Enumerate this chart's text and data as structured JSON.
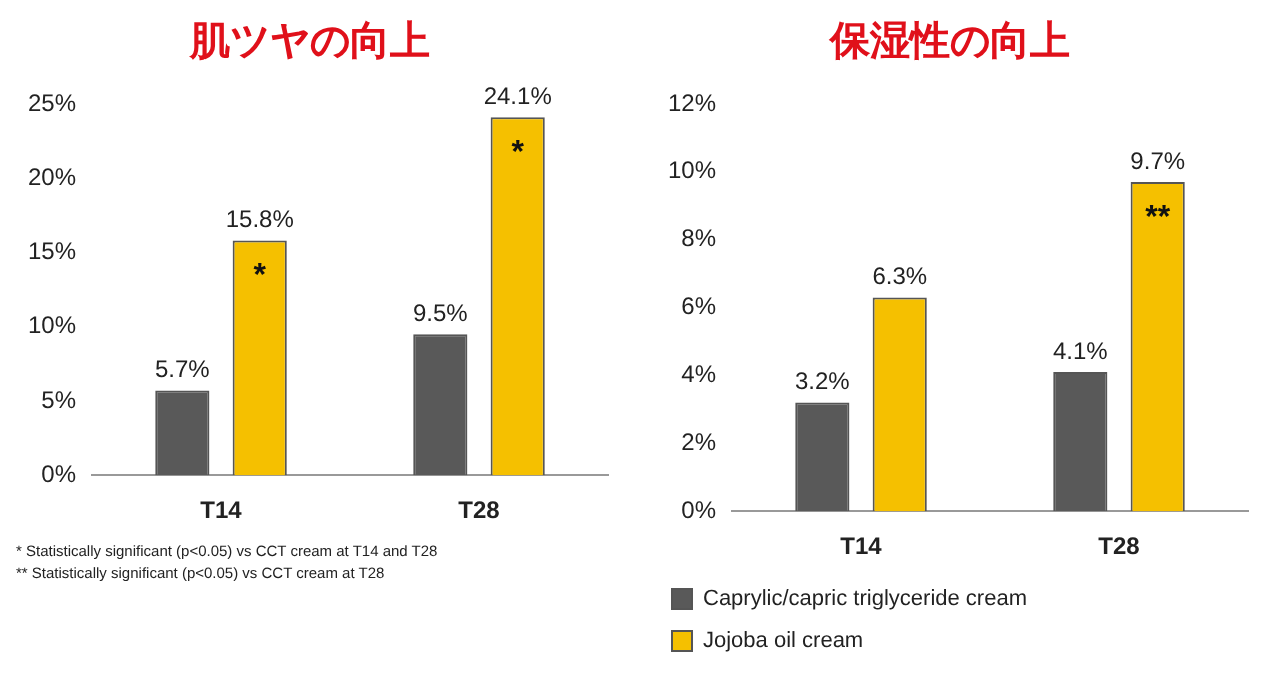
{
  "chart_data": [
    {
      "type": "bar",
      "title": "肌ツヤの向上",
      "categories": [
        "T14",
        "T28"
      ],
      "series": [
        {
          "color": "#595959",
          "values": [
            5.7,
            9.5
          ],
          "value_labels": [
            "5.7%",
            "9.5%"
          ]
        },
        {
          "color": "#f5c000",
          "values": [
            15.8,
            24.1
          ],
          "value_labels": [
            "15.8%",
            "24.1%"
          ]
        }
      ],
      "ylim": [
        0,
        25
      ],
      "yticks": [
        {
          "value": 0,
          "label": "0%"
        },
        {
          "value": 5,
          "label": "5%"
        },
        {
          "value": 10,
          "label": "10%"
        },
        {
          "value": 15,
          "label": "15%"
        },
        {
          "value": 20,
          "label": "20%"
        },
        {
          "value": 25,
          "label": "25%"
        }
      ],
      "grid": false,
      "legend": false,
      "annotations": [
        "*",
        "*",
        "* Statistically significant (p<0.05) vs CCT cream at T14 and T28",
        "** Statistically significant (p<0.05) vs CCT cream at T28"
      ]
    },
    {
      "type": "bar",
      "title": "保湿性の向上",
      "categories": [
        "T14",
        "T28"
      ],
      "series": [
        {
          "name": "Caprylic/capric triglyceride cream",
          "color": "#595959",
          "values": [
            3.2,
            4.1
          ],
          "value_labels": [
            "3.2%",
            "4.1%"
          ]
        },
        {
          "name": "Jojoba oil cream",
          "color": "#f5c000",
          "values": [
            6.3,
            9.7
          ],
          "value_labels": [
            "6.3%",
            "9.7%"
          ]
        }
      ],
      "ylim": [
        0,
        12
      ],
      "yticks": [
        {
          "value": 0,
          "label": "0%"
        },
        {
          "value": 2,
          "label": "2%"
        },
        {
          "value": 4,
          "label": "4%"
        },
        {
          "value": 6,
          "label": "6%"
        },
        {
          "value": 8,
          "label": "8%"
        },
        {
          "value": 10,
          "label": "10%"
        },
        {
          "value": 12,
          "label": "12%"
        }
      ],
      "grid": false,
      "legend": "bottom",
      "annotations": [
        "**"
      ]
    }
  ]
}
